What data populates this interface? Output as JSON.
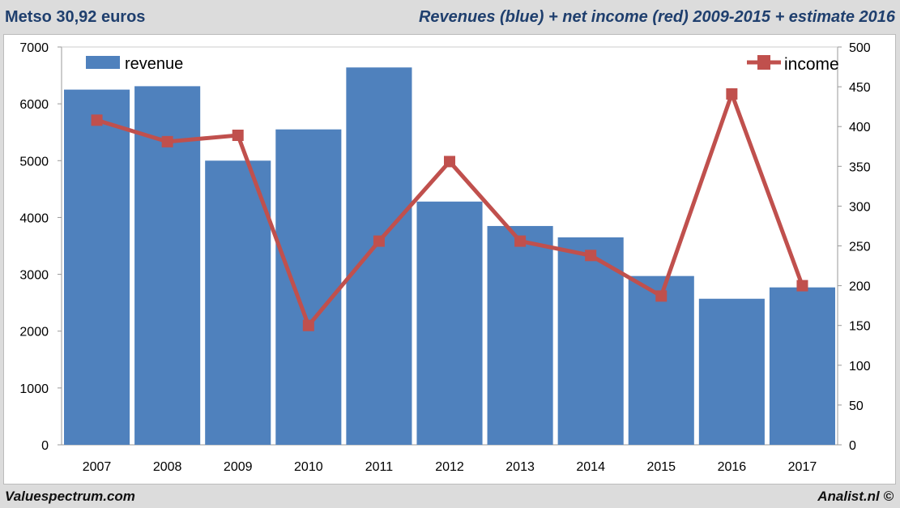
{
  "header": {
    "title_left": "Metso 30,92 euros",
    "title_right": "Revenues (blue) + net income (red) 2009-2015 + estimate 2016"
  },
  "footer": {
    "left": "Valuespectrum.com",
    "right": "Analist.nl ©"
  },
  "chart_data": {
    "type": "bar+line",
    "categories": [
      "2007",
      "2008",
      "2009",
      "2010",
      "2011",
      "2012",
      "2013",
      "2014",
      "2015",
      "2016",
      "2017"
    ],
    "series": [
      {
        "name": "revenue",
        "type": "bar",
        "axis": "left",
        "color": "#4f81bd",
        "values": [
          6250,
          6310,
          5000,
          5550,
          6640,
          4280,
          3850,
          3650,
          2970,
          2570,
          2770
        ]
      },
      {
        "name": "income",
        "type": "line",
        "axis": "right",
        "color": "#c0504d",
        "values": [
          408,
          381,
          389,
          150,
          256,
          356,
          256,
          238,
          187,
          441,
          200
        ]
      }
    ],
    "left_axis": {
      "ylim": [
        0,
        7000
      ],
      "ticks": [
        "0",
        "1000",
        "2000",
        "3000",
        "4000",
        "5000",
        "6000",
        "7000"
      ]
    },
    "right_axis": {
      "ylim": [
        0,
        500
      ],
      "ticks": [
        "0",
        "50",
        "100",
        "150",
        "200",
        "250",
        "300",
        "350",
        "400",
        "450",
        "500"
      ]
    },
    "grid": false,
    "legend": {
      "revenue": "top-left",
      "income": "top-right"
    }
  }
}
